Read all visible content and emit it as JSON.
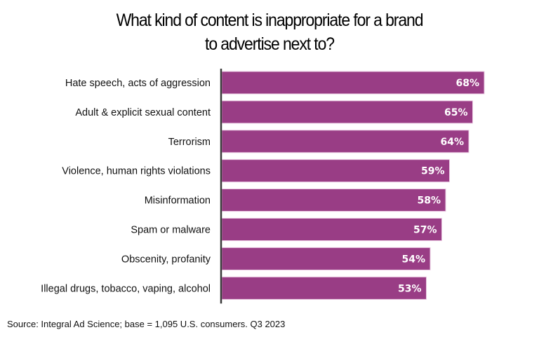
{
  "chart_data": {
    "type": "bar",
    "orientation": "horizontal",
    "title": "What kind of content is inappropriate for a brand to advertise next to?",
    "title_lines": [
      "What kind of content is inappropriate for a brand",
      "to advertise next to?"
    ],
    "categories": [
      "Hate speech, acts of aggression",
      "Adult & explicit sexual content",
      "Terrorism",
      "Violence, human rights violations",
      "Misinformation",
      "Spam or malware",
      "Obscenity, profanity",
      "Illegal drugs, tobacco, vaping, alcohol"
    ],
    "values": [
      68,
      65,
      64,
      59,
      58,
      57,
      54,
      53
    ],
    "value_labels": [
      "68%",
      "65%",
      "64%",
      "59%",
      "58%",
      "57%",
      "54%",
      "53%"
    ],
    "unit": "%",
    "xlabel": "",
    "ylabel": "",
    "xlim": [
      0,
      80
    ],
    "grid": false,
    "legend": "none",
    "bar_color": "#993D85",
    "bar_edge_color": "#EBCBE3",
    "value_label_color": "#FFFFFF",
    "source": "Source: Integral Ad Science; base = 1,095 U.S. consumers. Q3 2023"
  }
}
